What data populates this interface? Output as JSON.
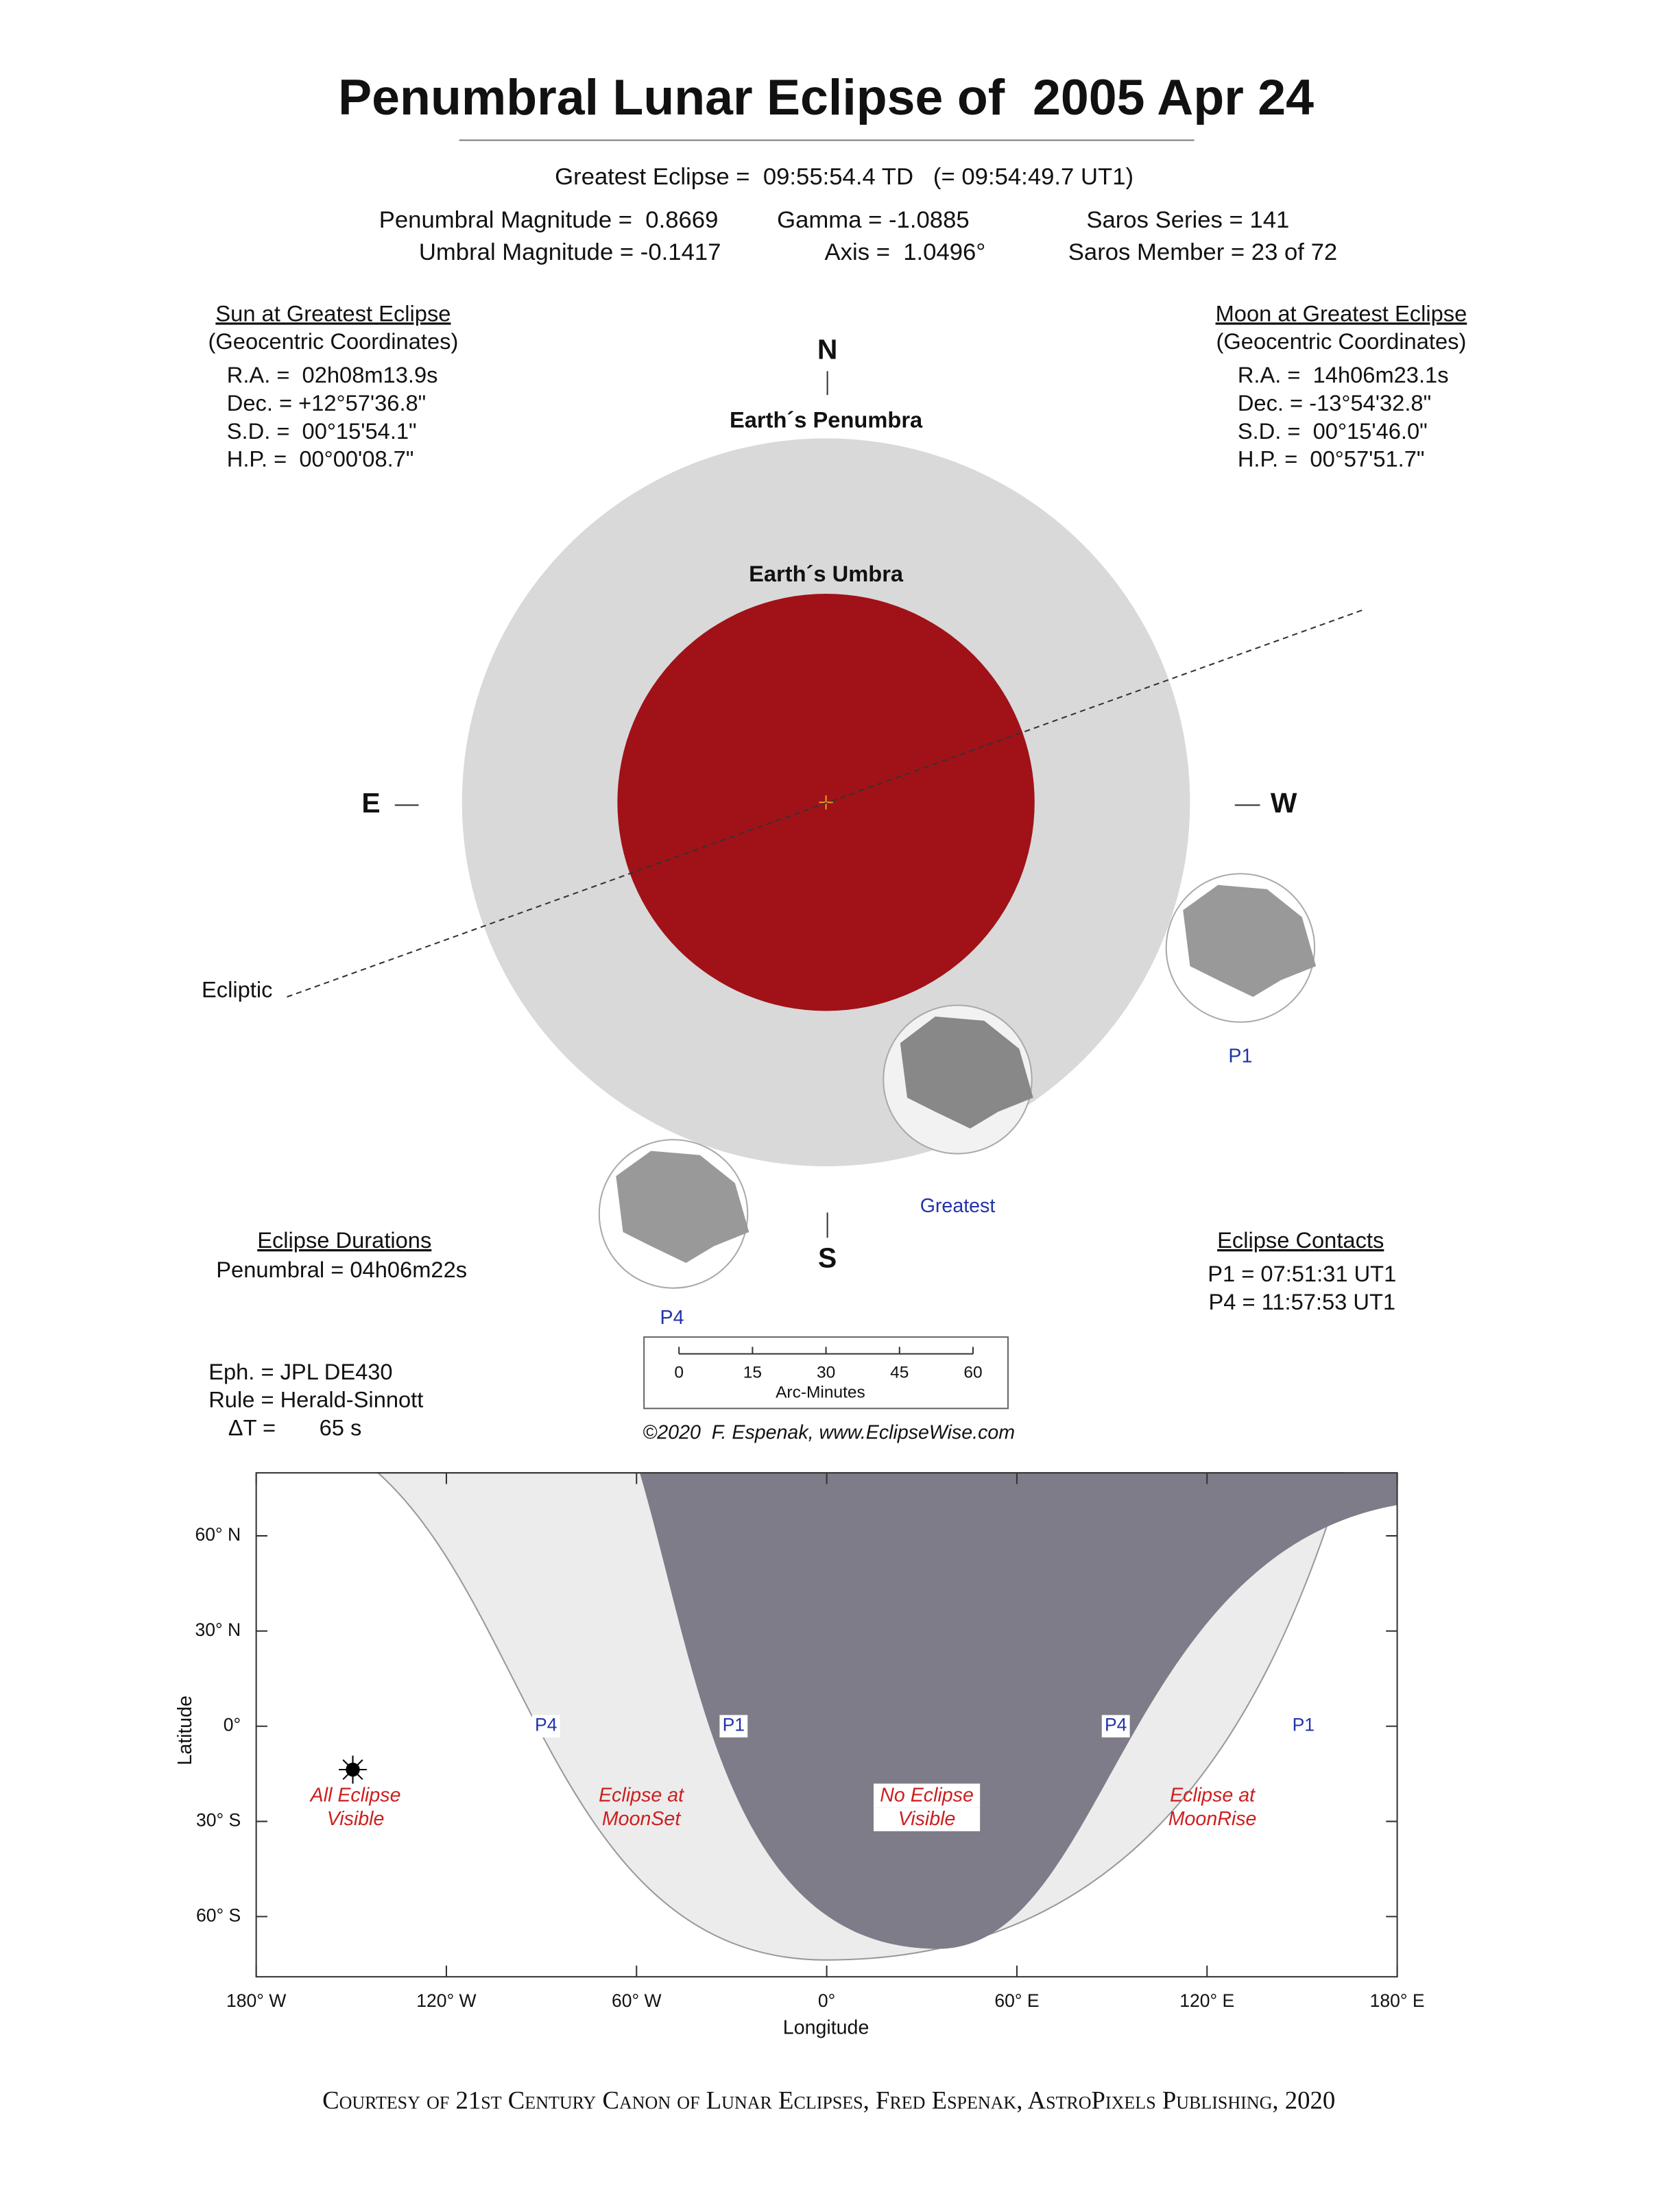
{
  "title": "Penumbral Lunar Eclipse of  2005 Apr 24",
  "greatest_eclipse": "Greatest Eclipse =  09:55:54.4 TD   (= 09:54:49.7 UT1)",
  "parameters": {
    "penumbral_magnitude": "Penumbral Magnitude =  0.8669",
    "umbral_magnitude": "Umbral Magnitude = -0.1417",
    "gamma": "Gamma = -1.0885",
    "axis": "Axis =  1.0496°",
    "saros_series": "Saros Series = 141",
    "saros_member": "Saros Member = 23 of 72"
  },
  "sun": {
    "heading": "Sun at Greatest Eclipse",
    "subheading": "(Geocentric Coordinates)",
    "lines": [
      "R.A. =  02h08m13.9s",
      "Dec. = +12°57'36.8\"",
      "S.D. =  00°15'54.1\"",
      "H.P. =  00°00'08.7\""
    ]
  },
  "moon": {
    "heading": "Moon at Greatest Eclipse",
    "subheading": "(Geocentric Coordinates)",
    "lines": [
      "R.A. =  14h06m23.1s",
      "Dec. = -13°54'32.8\"",
      "S.D. =  00°15'46.0\"",
      "H.P. =  00°57'51.7\""
    ]
  },
  "diagram": {
    "north": "N",
    "south": "S",
    "east": "E",
    "west": "W",
    "penumbra": "Earth´s Penumbra",
    "umbra": "Earth´s Umbra",
    "ecliptic": "Ecliptic",
    "p1": "P1",
    "greatest": "Greatest",
    "p4": "P4"
  },
  "durations": {
    "heading": "Eclipse Durations",
    "lines": [
      "Penumbral = 04h06m22s"
    ]
  },
  "contacts": {
    "heading": "Eclipse Contacts",
    "lines": [
      "P1 = 07:51:31 UT1",
      "P4 = 11:57:53 UT1"
    ]
  },
  "ephemeris": [
    "Eph. = JPL DE430",
    "Rule = Herald-Sinnott",
    "ΔT =       65 s"
  ],
  "scale": {
    "ticks": [
      0,
      15,
      30,
      45,
      60
    ],
    "label": "Arc-Minutes"
  },
  "copyright": "©2020  F. Espenak, www.EclipseWise.com",
  "map": {
    "y_label": "Latitude",
    "x_label": "Longitude",
    "lat_ticks": [
      {
        "value": 60,
        "label": "60° N"
      },
      {
        "value": 30,
        "label": "30° N"
      },
      {
        "value": 0,
        "label": "0°"
      },
      {
        "value": -30,
        "label": "30° S"
      },
      {
        "value": -60,
        "label": "60° S"
      }
    ],
    "lon_ticks": [
      {
        "value": -180,
        "label": "180° W"
      },
      {
        "value": -120,
        "label": "120° W"
      },
      {
        "value": -60,
        "label": "60° W"
      },
      {
        "value": 0,
        "label": "0°"
      },
      {
        "value": 60,
        "label": "60° E"
      },
      {
        "value": 120,
        "label": "120° E"
      },
      {
        "value": 180,
        "label": "180° E"
      }
    ],
    "contacts": [
      "P4",
      "P1",
      "P4",
      "P1"
    ],
    "regions": [
      {
        "lines": [
          "All Eclipse",
          "Visible"
        ]
      },
      {
        "lines": [
          "Eclipse at",
          "MoonSet"
        ]
      },
      {
        "lines": [
          "No Eclipse",
          "Visible"
        ]
      },
      {
        "lines": [
          "Eclipse at",
          "MoonRise"
        ]
      }
    ]
  },
  "footer": "Courtesy of 21st Century Canon of Lunar Eclipses, Fred Espenak, AstroPixels Publishing, 2020"
}
